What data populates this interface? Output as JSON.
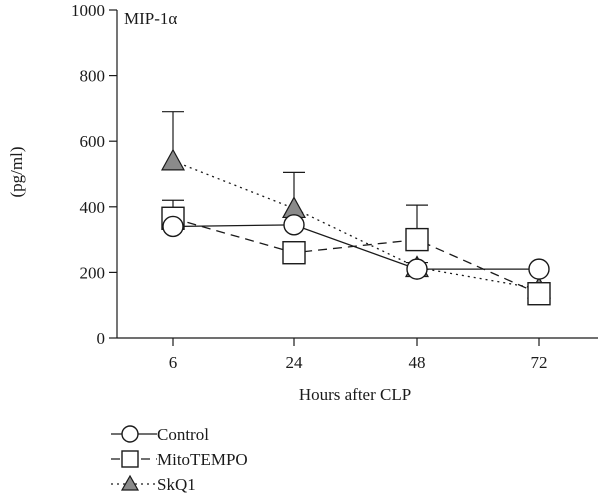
{
  "chart_data": {
    "type": "line",
    "title": "MIP-1α",
    "xlabel": "Hours after CLP",
    "ylabel": "(pg/ml)",
    "categories": [
      "6",
      "24",
      "48",
      "72"
    ],
    "yticks": [
      "0",
      "200",
      "400",
      "600",
      "800",
      "1000"
    ],
    "ylim": [
      0,
      1000
    ],
    "grid": false,
    "legend_position": "bottom-left",
    "series": [
      {
        "name": "Control",
        "marker": "circle",
        "line": "solid",
        "fill": "#ffffff",
        "values": [
          340,
          345,
          210,
          210
        ],
        "errors": [
          null,
          null,
          20,
          null
        ]
      },
      {
        "name": "MitoTEMPO",
        "marker": "square",
        "line": "dashed",
        "fill": "#ffffff",
        "values": [
          365,
          260,
          300,
          135
        ],
        "errors": [
          55,
          null,
          105,
          null
        ]
      },
      {
        "name": "SkQ1",
        "marker": "triangle",
        "line": "dotted",
        "fill": "#8a8a8a",
        "values": [
          540,
          395,
          215,
          150
        ],
        "errors": [
          150,
          110,
          null,
          null
        ]
      }
    ]
  }
}
